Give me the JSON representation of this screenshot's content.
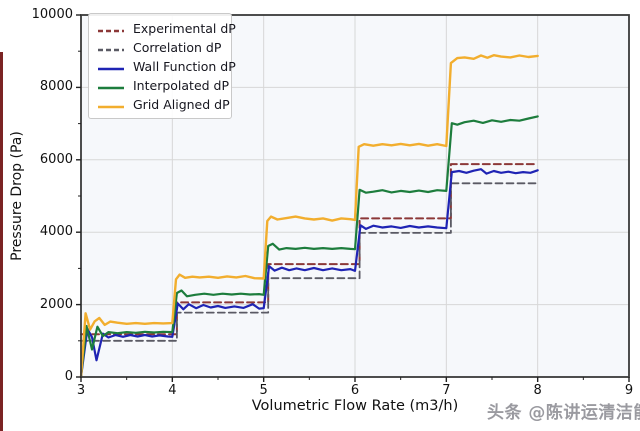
{
  "watermark": "头条 @陈讲运清洁能源",
  "colors": {
    "experimental": "#8c3838",
    "correlation": "#5a5a64",
    "wall_function": "#1f24b4",
    "interpolated": "#1d7d3d",
    "grid_aligned": "#f2ae2e",
    "plot_bg": "#f6f8fb",
    "gridline": "#d7d7d7",
    "spine": "#3a3a3a"
  },
  "chart_data": {
    "type": "line",
    "title": "",
    "xlabel": "Volumetric Flow Rate (m3/h)",
    "ylabel": "Pressure Drop (Pa)",
    "xlim": [
      3,
      9
    ],
    "ylim": [
      0,
      10000
    ],
    "x_ticks": [
      "3",
      "4",
      "5",
      "6",
      "7",
      "8",
      "9"
    ],
    "y_ticks": [
      "0",
      "2000",
      "4000",
      "6000",
      "8000",
      "10000"
    ],
    "x_minor_step": 0.5,
    "y_minor_step": 1000,
    "grid": true,
    "legend_position": "upper-left",
    "series": [
      {
        "name": "Experimental dP",
        "color": "#8c3838",
        "dash": true,
        "width": 2,
        "step_levels": {
          "3-4": 1180,
          "4-5": 2060,
          "5-6": 3120,
          "6-7": 4380,
          "7-8": 5880
        },
        "points": [
          [
            3.0,
            1180
          ],
          [
            4.05,
            1180
          ],
          [
            4.05,
            2060
          ],
          [
            5.05,
            2060
          ],
          [
            5.05,
            3120
          ],
          [
            6.05,
            3120
          ],
          [
            6.05,
            4380
          ],
          [
            7.05,
            4380
          ],
          [
            7.05,
            5880
          ],
          [
            8.0,
            5880
          ]
        ]
      },
      {
        "name": "Correlation dP",
        "color": "#5a5a64",
        "dash": true,
        "width": 1.8,
        "step_levels": {
          "3-4": 1000,
          "4-5": 1780,
          "5-6": 2730,
          "6-7": 3980,
          "7-8": 5350
        },
        "points": [
          [
            3.0,
            1000
          ],
          [
            4.05,
            1000
          ],
          [
            4.05,
            1780
          ],
          [
            5.05,
            1780
          ],
          [
            5.05,
            2730
          ],
          [
            6.05,
            2730
          ],
          [
            6.05,
            3980
          ],
          [
            7.05,
            3980
          ],
          [
            7.05,
            5350
          ],
          [
            8.0,
            5350
          ]
        ]
      },
      {
        "name": "Wall Function dP",
        "color": "#1f24b4",
        "dash": false,
        "width": 2.2,
        "step_levels": {
          "3-4": 1140,
          "4-5": 1930,
          "5-6": 2970,
          "6-7": 4150,
          "7-8": 5660
        },
        "points": [
          [
            3.0,
            0
          ],
          [
            3.07,
            1330
          ],
          [
            3.12,
            1100
          ],
          [
            3.17,
            460
          ],
          [
            3.24,
            1200
          ],
          [
            3.3,
            1090
          ],
          [
            3.38,
            1160
          ],
          [
            3.46,
            1110
          ],
          [
            3.54,
            1160
          ],
          [
            3.62,
            1120
          ],
          [
            3.7,
            1160
          ],
          [
            3.78,
            1120
          ],
          [
            3.86,
            1150
          ],
          [
            3.95,
            1120
          ],
          [
            4.0,
            1110
          ],
          [
            4.06,
            2030
          ],
          [
            4.12,
            1870
          ],
          [
            4.18,
            2010
          ],
          [
            4.26,
            1900
          ],
          [
            4.34,
            1990
          ],
          [
            4.42,
            1920
          ],
          [
            4.5,
            1960
          ],
          [
            4.58,
            1910
          ],
          [
            4.68,
            1950
          ],
          [
            4.78,
            1910
          ],
          [
            4.88,
            2010
          ],
          [
            4.95,
            1890
          ],
          [
            5.0,
            1900
          ],
          [
            5.06,
            3060
          ],
          [
            5.12,
            2940
          ],
          [
            5.2,
            3020
          ],
          [
            5.28,
            2950
          ],
          [
            5.36,
            3000
          ],
          [
            5.45,
            2950
          ],
          [
            5.55,
            3010
          ],
          [
            5.65,
            2950
          ],
          [
            5.75,
            3000
          ],
          [
            5.85,
            2950
          ],
          [
            5.95,
            2980
          ],
          [
            6.0,
            2930
          ],
          [
            6.06,
            4190
          ],
          [
            6.12,
            4090
          ],
          [
            6.2,
            4180
          ],
          [
            6.3,
            4130
          ],
          [
            6.4,
            4160
          ],
          [
            6.5,
            4120
          ],
          [
            6.6,
            4170
          ],
          [
            6.7,
            4130
          ],
          [
            6.8,
            4160
          ],
          [
            6.9,
            4130
          ],
          [
            7.0,
            4110
          ],
          [
            7.06,
            5660
          ],
          [
            7.14,
            5690
          ],
          [
            7.22,
            5640
          ],
          [
            7.3,
            5700
          ],
          [
            7.38,
            5740
          ],
          [
            7.44,
            5620
          ],
          [
            7.52,
            5690
          ],
          [
            7.6,
            5640
          ],
          [
            7.68,
            5670
          ],
          [
            7.76,
            5630
          ],
          [
            7.84,
            5660
          ],
          [
            7.92,
            5640
          ],
          [
            8.0,
            5710
          ]
        ]
      },
      {
        "name": "Interpolated dP",
        "color": "#1d7d3d",
        "dash": false,
        "width": 2.2,
        "step_levels": {
          "3-4": 1230,
          "4-5": 2280,
          "5-6": 3550,
          "6-7": 5120,
          "7-8": 7100
        },
        "points": [
          [
            3.0,
            0
          ],
          [
            3.06,
            1410
          ],
          [
            3.12,
            760
          ],
          [
            3.18,
            1390
          ],
          [
            3.24,
            1130
          ],
          [
            3.3,
            1240
          ],
          [
            3.4,
            1210
          ],
          [
            3.5,
            1240
          ],
          [
            3.6,
            1220
          ],
          [
            3.7,
            1250
          ],
          [
            3.8,
            1230
          ],
          [
            3.9,
            1250
          ],
          [
            4.0,
            1240
          ],
          [
            4.05,
            2320
          ],
          [
            4.1,
            2390
          ],
          [
            4.16,
            2230
          ],
          [
            4.25,
            2270
          ],
          [
            4.35,
            2300
          ],
          [
            4.45,
            2270
          ],
          [
            4.55,
            2300
          ],
          [
            4.65,
            2280
          ],
          [
            4.75,
            2300
          ],
          [
            4.85,
            2280
          ],
          [
            4.95,
            2290
          ],
          [
            5.0,
            2270
          ],
          [
            5.05,
            3620
          ],
          [
            5.1,
            3680
          ],
          [
            5.17,
            3520
          ],
          [
            5.25,
            3560
          ],
          [
            5.35,
            3540
          ],
          [
            5.45,
            3570
          ],
          [
            5.55,
            3540
          ],
          [
            5.65,
            3560
          ],
          [
            5.75,
            3540
          ],
          [
            5.85,
            3560
          ],
          [
            5.95,
            3540
          ],
          [
            6.0,
            3530
          ],
          [
            6.05,
            5170
          ],
          [
            6.12,
            5090
          ],
          [
            6.2,
            5120
          ],
          [
            6.3,
            5160
          ],
          [
            6.4,
            5100
          ],
          [
            6.5,
            5140
          ],
          [
            6.6,
            5110
          ],
          [
            6.7,
            5150
          ],
          [
            6.8,
            5110
          ],
          [
            6.9,
            5160
          ],
          [
            7.0,
            5140
          ],
          [
            7.06,
            7010
          ],
          [
            7.12,
            6970
          ],
          [
            7.2,
            7040
          ],
          [
            7.3,
            7080
          ],
          [
            7.4,
            7020
          ],
          [
            7.5,
            7090
          ],
          [
            7.6,
            7050
          ],
          [
            7.7,
            7100
          ],
          [
            7.8,
            7080
          ],
          [
            7.9,
            7140
          ],
          [
            8.0,
            7200
          ]
        ]
      },
      {
        "name": "Grid Aligned dP",
        "color": "#f2ae2e",
        "dash": false,
        "width": 2.4,
        "step_levels": {
          "3-4": 1490,
          "4-5": 2750,
          "5-6": 4380,
          "6-7": 6410,
          "7-8": 8850
        },
        "points": [
          [
            3.0,
            0
          ],
          [
            3.05,
            1760
          ],
          [
            3.1,
            1310
          ],
          [
            3.15,
            1540
          ],
          [
            3.2,
            1630
          ],
          [
            3.26,
            1440
          ],
          [
            3.32,
            1530
          ],
          [
            3.4,
            1500
          ],
          [
            3.5,
            1470
          ],
          [
            3.6,
            1490
          ],
          [
            3.7,
            1470
          ],
          [
            3.8,
            1490
          ],
          [
            3.9,
            1480
          ],
          [
            4.0,
            1490
          ],
          [
            4.04,
            2700
          ],
          [
            4.08,
            2830
          ],
          [
            4.14,
            2740
          ],
          [
            4.22,
            2770
          ],
          [
            4.3,
            2750
          ],
          [
            4.4,
            2770
          ],
          [
            4.5,
            2740
          ],
          [
            4.6,
            2780
          ],
          [
            4.7,
            2750
          ],
          [
            4.8,
            2790
          ],
          [
            4.9,
            2730
          ],
          [
            5.0,
            2720
          ],
          [
            5.04,
            4310
          ],
          [
            5.08,
            4430
          ],
          [
            5.15,
            4350
          ],
          [
            5.25,
            4390
          ],
          [
            5.35,
            4430
          ],
          [
            5.45,
            4380
          ],
          [
            5.55,
            4350
          ],
          [
            5.65,
            4380
          ],
          [
            5.75,
            4320
          ],
          [
            5.85,
            4380
          ],
          [
            5.95,
            4360
          ],
          [
            6.0,
            4340
          ],
          [
            6.04,
            6360
          ],
          [
            6.1,
            6430
          ],
          [
            6.2,
            6390
          ],
          [
            6.3,
            6430
          ],
          [
            6.4,
            6400
          ],
          [
            6.5,
            6440
          ],
          [
            6.6,
            6400
          ],
          [
            6.7,
            6440
          ],
          [
            6.8,
            6390
          ],
          [
            6.9,
            6430
          ],
          [
            7.0,
            6380
          ],
          [
            7.05,
            8670
          ],
          [
            7.12,
            8810
          ],
          [
            7.2,
            8830
          ],
          [
            7.3,
            8790
          ],
          [
            7.38,
            8880
          ],
          [
            7.45,
            8820
          ],
          [
            7.52,
            8890
          ],
          [
            7.6,
            8850
          ],
          [
            7.7,
            8830
          ],
          [
            7.8,
            8880
          ],
          [
            7.9,
            8840
          ],
          [
            8.0,
            8870
          ]
        ]
      }
    ]
  }
}
